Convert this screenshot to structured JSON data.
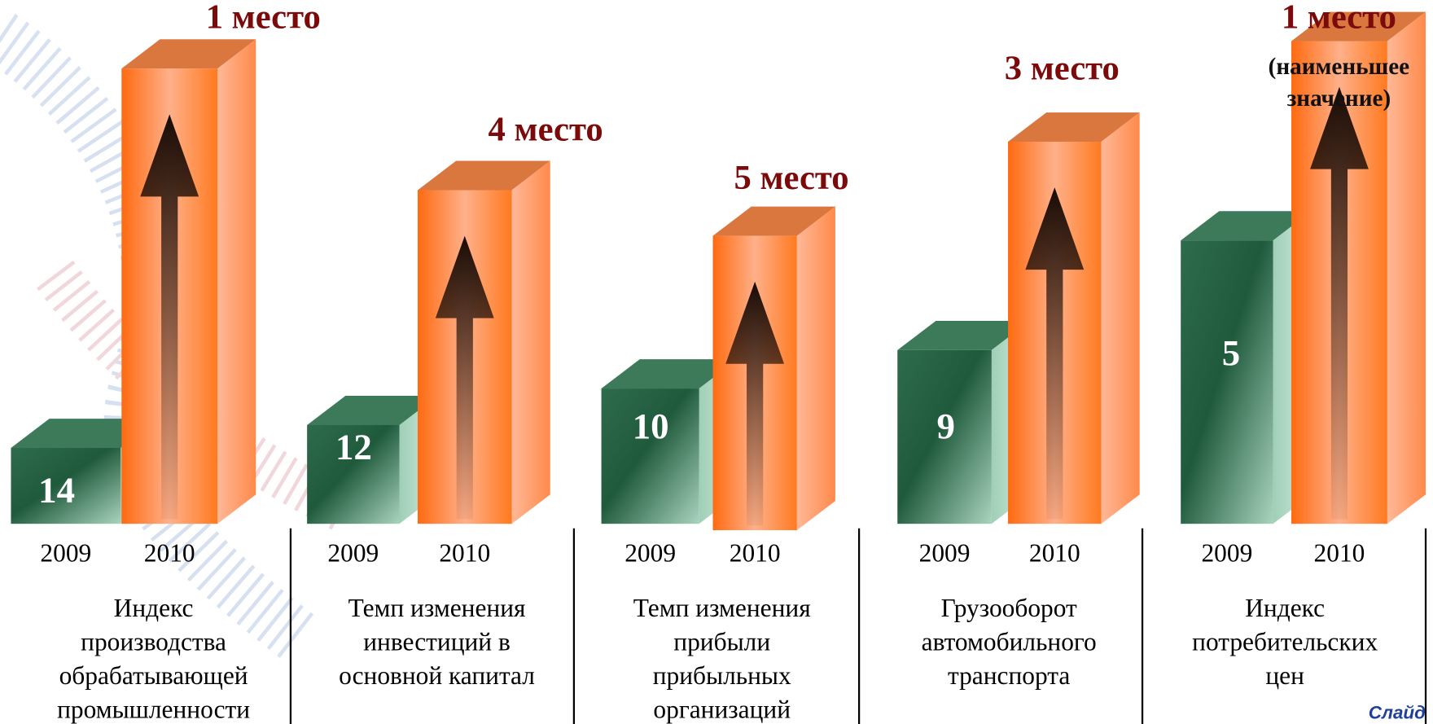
{
  "groups": [
    {
      "value_2009": "14",
      "rank_2010": [
        "1 место"
      ],
      "years": [
        "2009",
        "2010"
      ],
      "label": [
        "Индекс",
        "производства",
        "обрабатывающей",
        "промышленности"
      ]
    },
    {
      "value_2009": "12",
      "rank_2010": [
        "4 место"
      ],
      "years": [
        "2009",
        "2010"
      ],
      "label": [
        "Темп изменения",
        "инвестиций в",
        "основной капитал"
      ]
    },
    {
      "value_2009": "10",
      "rank_2010": [
        "5 место"
      ],
      "years": [
        "2009",
        "2010"
      ],
      "label": [
        "Темп изменения",
        "прибыли",
        "прибыльных",
        "организаций"
      ]
    },
    {
      "value_2009": "9",
      "rank_2010": [
        "3 место"
      ],
      "years": [
        "2009",
        "2010"
      ],
      "label": [
        "Грузооборот",
        "автомобильного",
        "транспорта"
      ]
    },
    {
      "value_2009": "5",
      "rank_2010": [
        "1 место",
        "(наименьшее",
        "значение)"
      ],
      "years": [
        "2009",
        "2010"
      ],
      "label": [
        "Индекс",
        "потребительских",
        "цен"
      ]
    }
  ],
  "footer": "Слайд"
}
